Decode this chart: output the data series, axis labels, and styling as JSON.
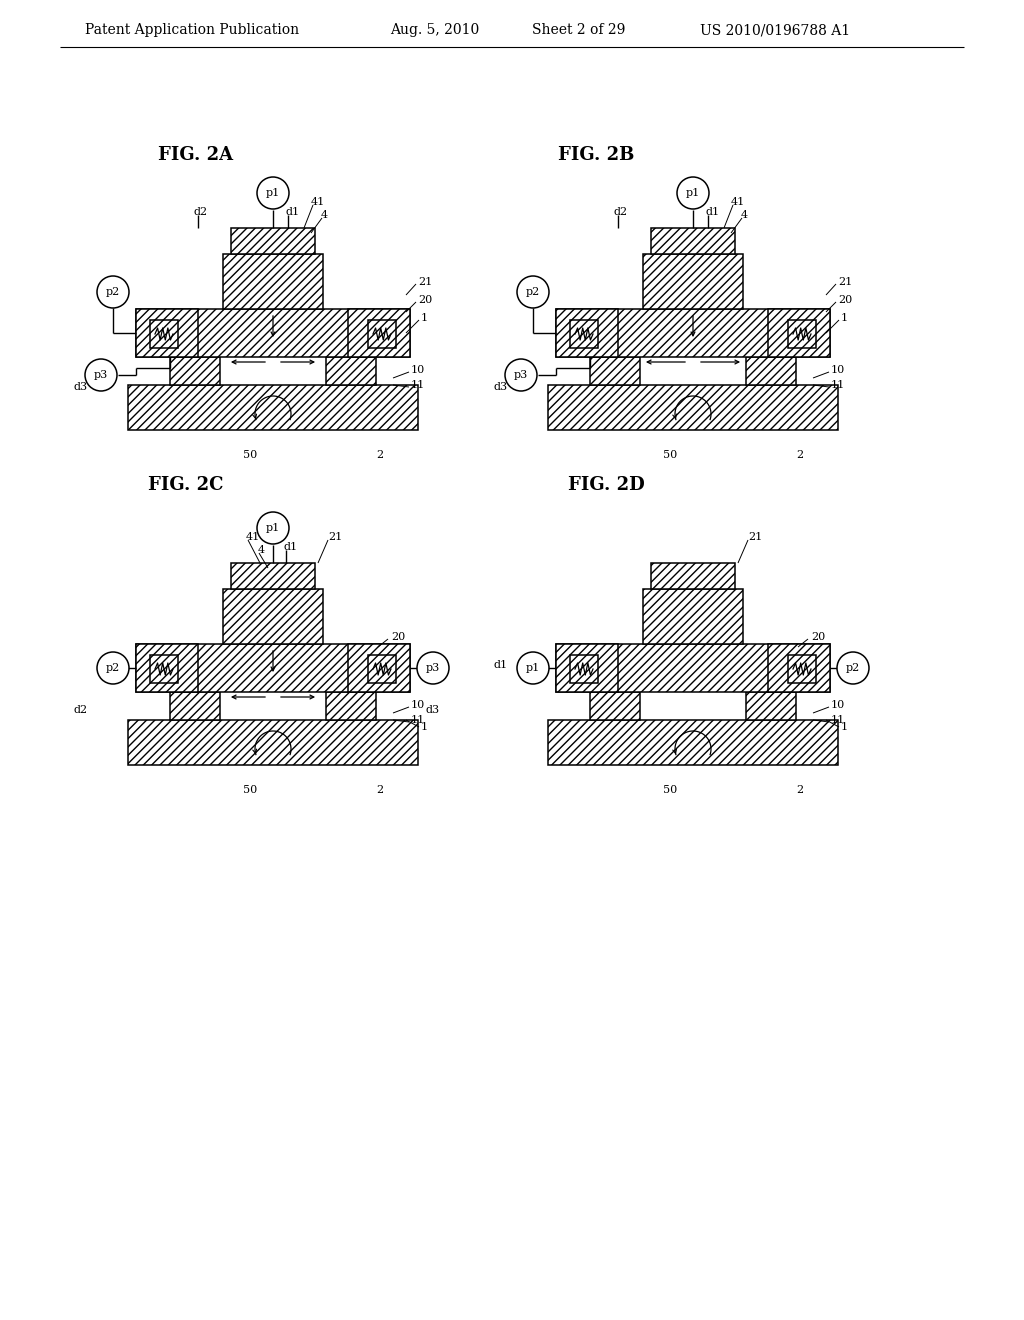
{
  "background_color": "#ffffff",
  "header_text": "Patent Application Publication",
  "header_date": "Aug. 5, 2010",
  "header_sheet": "Sheet 2 of 29",
  "header_patent": "US 2010/0196788 A1"
}
